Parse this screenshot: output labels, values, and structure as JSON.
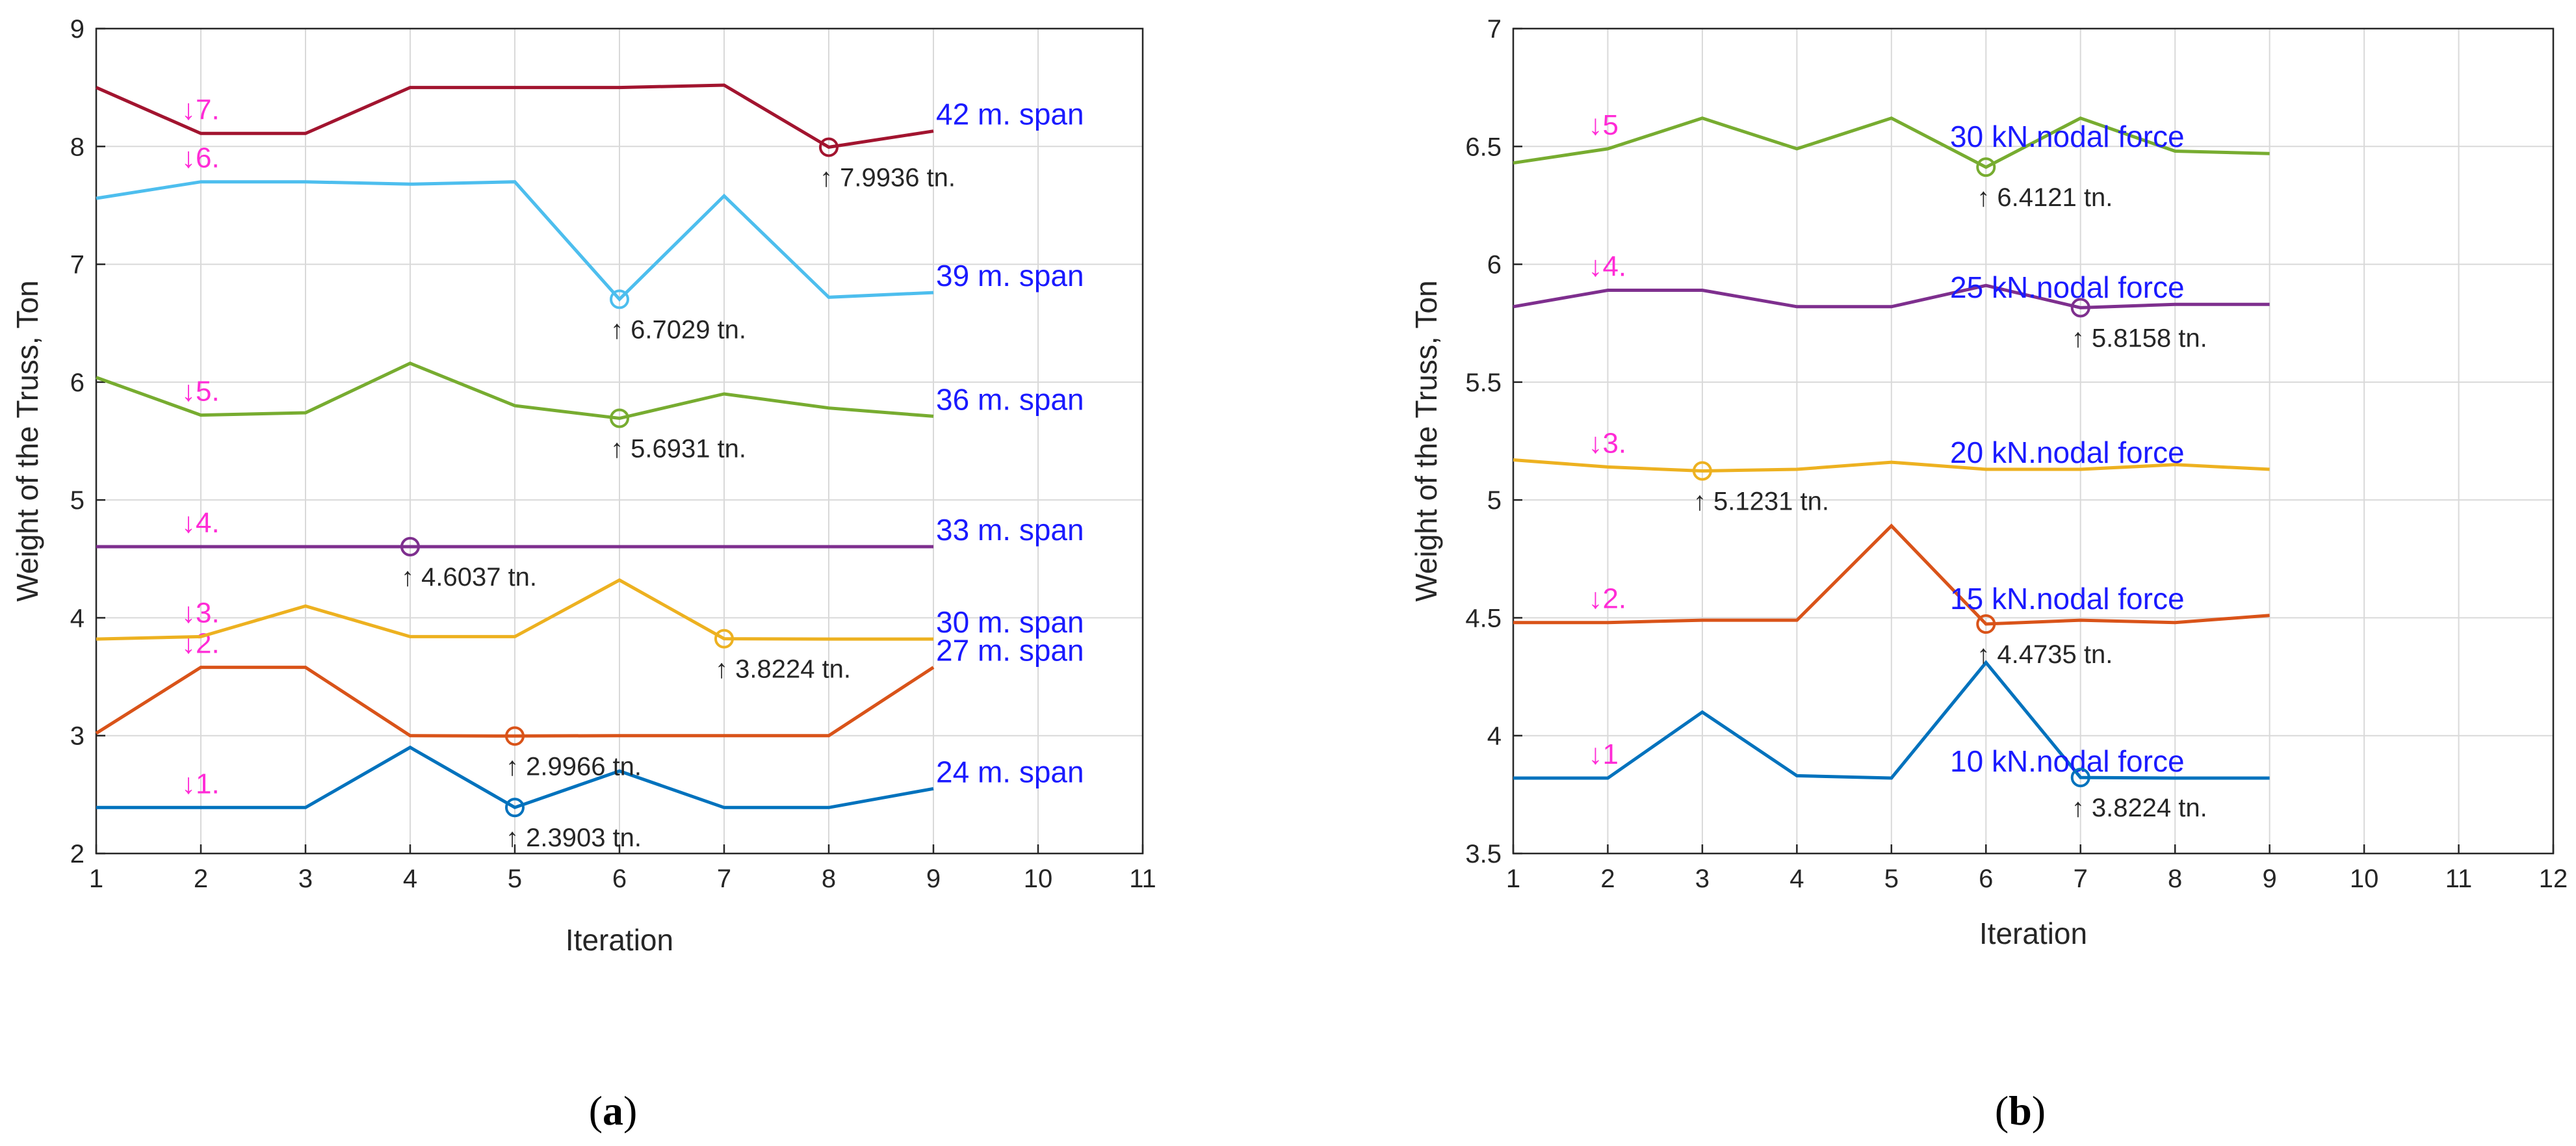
{
  "chart_data": [
    {
      "type": "line",
      "panel_label": "a",
      "xlabel": "Iteration",
      "ylabel": "Weight of the Truss, Ton",
      "xlim": [
        1,
        11
      ],
      "ylim": [
        2,
        9
      ],
      "xticks": [
        1,
        2,
        3,
        4,
        5,
        6,
        7,
        8,
        9,
        10,
        11
      ],
      "yticks": [
        2,
        3,
        4,
        5,
        6,
        7,
        8,
        9
      ],
      "grid": true,
      "x": [
        1,
        2,
        3,
        4,
        5,
        6,
        7,
        8,
        9
      ],
      "series": [
        {
          "name": "24 m. span",
          "color": "#0072BD",
          "values": [
            2.39,
            2.39,
            2.39,
            2.9,
            2.3903,
            2.7,
            2.39,
            2.39,
            2.55
          ],
          "marker": {
            "x": 5,
            "y": 2.3903
          },
          "annotation": "↑ 2.3903 tn.",
          "order_label": "↓1."
        },
        {
          "name": "27 m. span",
          "color": "#D95319",
          "values": [
            3.02,
            3.58,
            3.58,
            3.0,
            2.9966,
            3.0,
            3.0,
            3.0,
            3.58
          ],
          "marker": {
            "x": 5,
            "y": 2.9966
          },
          "annotation": "↑ 2.9966 tn.",
          "order_label": "↓2."
        },
        {
          "name": "30 m. span",
          "color": "#EDB120",
          "values": [
            3.82,
            3.84,
            4.1,
            3.84,
            3.84,
            4.32,
            3.8224,
            3.82,
            3.82
          ],
          "marker": {
            "x": 7,
            "y": 3.8224
          },
          "annotation": "↑ 3.8224 tn.",
          "order_label": "↓3."
        },
        {
          "name": "33 m. span",
          "color": "#7E2F8E",
          "values": [
            4.6037,
            4.6037,
            4.6037,
            4.6037,
            4.6037,
            4.6037,
            4.6037,
            4.6037,
            4.6037
          ],
          "marker": {
            "x": 4,
            "y": 4.6037
          },
          "annotation": "↑ 4.6037 tn.",
          "order_label": "↓4."
        },
        {
          "name": "36 m. span",
          "color": "#77AC30",
          "values": [
            6.04,
            5.72,
            5.74,
            6.16,
            5.8,
            5.6931,
            5.9,
            5.78,
            5.71
          ],
          "marker": {
            "x": 6,
            "y": 5.6931
          },
          "annotation": "↑ 5.6931 tn.",
          "order_label": "↓5."
        },
        {
          "name": "39 m. span",
          "color": "#4DBEEE",
          "values": [
            7.56,
            7.7,
            7.7,
            7.68,
            7.7,
            6.7029,
            7.58,
            6.72,
            6.76
          ],
          "marker": {
            "x": 6,
            "y": 6.7029
          },
          "annotation": "↑ 6.7029 tn.",
          "order_label": "↓6."
        },
        {
          "name": "42 m. span",
          "color": "#A2142F",
          "values": [
            8.5,
            8.11,
            8.11,
            8.5,
            8.5,
            8.5,
            8.52,
            7.9936,
            8.13
          ],
          "marker": {
            "x": 8,
            "y": 7.9936
          },
          "annotation": "↑ 7.9936 tn.",
          "order_label": "↓7."
        }
      ]
    },
    {
      "type": "line",
      "panel_label": "b",
      "xlabel": "Iteration",
      "ylabel": "Weight of the Truss, Ton",
      "xlim": [
        1,
        12
      ],
      "ylim": [
        3.5,
        7
      ],
      "xticks": [
        1,
        2,
        3,
        4,
        5,
        6,
        7,
        8,
        9,
        10,
        11,
        12
      ],
      "yticks": [
        3.5,
        4,
        4.5,
        5,
        5.5,
        6,
        6.5,
        7
      ],
      "grid": true,
      "x": [
        1,
        2,
        3,
        4,
        5,
        6,
        7,
        8,
        9
      ],
      "series": [
        {
          "name": "10 kN.nodal force",
          "color": "#0072BD",
          "values": [
            3.82,
            3.82,
            4.1,
            3.83,
            3.82,
            4.31,
            3.8224,
            3.82,
            3.82
          ],
          "marker": {
            "x": 7,
            "y": 3.8224
          },
          "annotation": "↑ 3.8224 tn.",
          "order_label": "↓1"
        },
        {
          "name": "15 kN.nodal force",
          "color": "#D95319",
          "values": [
            4.48,
            4.48,
            4.49,
            4.49,
            4.89,
            4.4735,
            4.49,
            4.48,
            4.51
          ],
          "marker": {
            "x": 6,
            "y": 4.4735
          },
          "annotation": "↑ 4.4735 tn.",
          "order_label": "↓2."
        },
        {
          "name": "20 kN.nodal force",
          "color": "#EDB120",
          "values": [
            5.17,
            5.14,
            5.1231,
            5.13,
            5.16,
            5.13,
            5.13,
            5.15,
            5.13
          ],
          "marker": {
            "x": 3,
            "y": 5.1231
          },
          "annotation": "↑ 5.1231 tn.",
          "order_label": "↓3."
        },
        {
          "name": "25 kN.nodal force",
          "color": "#7E2F8E",
          "values": [
            5.82,
            5.89,
            5.89,
            5.82,
            5.82,
            5.91,
            5.8158,
            5.83,
            5.83
          ],
          "marker": {
            "x": 7,
            "y": 5.8158
          },
          "annotation": "↑ 5.8158 tn.",
          "order_label": "↓4."
        },
        {
          "name": "30 kN.nodal force",
          "color": "#77AC30",
          "values": [
            6.43,
            6.49,
            6.62,
            6.49,
            6.62,
            6.4121,
            6.62,
            6.48,
            6.47
          ],
          "marker": {
            "x": 6,
            "y": 6.4121
          },
          "annotation": "↑ 6.4121 tn.",
          "order_label": "↓5"
        }
      ]
    }
  ]
}
